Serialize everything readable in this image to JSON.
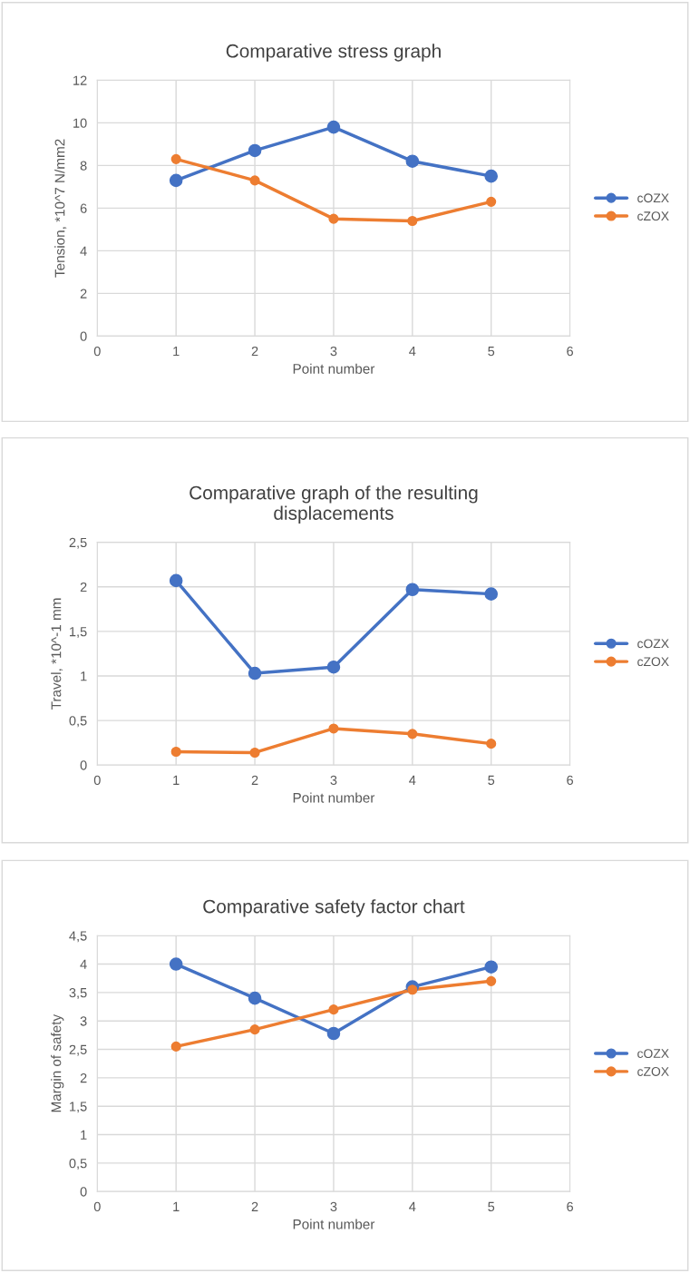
{
  "chart_data": [
    {
      "type": "line",
      "title": "Comparative stress graph",
      "xlabel": "Point number",
      "ylabel": "Tension, *10^7 N/mm2",
      "x": [
        1,
        2,
        3,
        4,
        5
      ],
      "series": [
        {
          "name": "cOZX",
          "color": "#4472c4",
          "values": [
            7.3,
            8.7,
            9.8,
            8.2,
            7.5
          ]
        },
        {
          "name": "cZOX",
          "color": "#ed7d31",
          "values": [
            8.3,
            7.3,
            5.5,
            5.4,
            6.3
          ]
        }
      ],
      "xlim": [
        0,
        6
      ],
      "xticks": [
        0,
        1,
        2,
        3,
        4,
        5,
        6
      ],
      "ylim": [
        0,
        12
      ],
      "yticks": [
        0,
        2,
        4,
        6,
        8,
        10,
        12
      ],
      "grid": true,
      "legend": "right",
      "marker": "circle",
      "line_style": "solid"
    },
    {
      "type": "line",
      "title": "Comparative graph of the resulting\ndisplacements",
      "xlabel": "Point number",
      "ylabel": "Travel, *10^-1 mm",
      "x": [
        1,
        2,
        3,
        4,
        5
      ],
      "series": [
        {
          "name": "cOZX",
          "color": "#4472c4",
          "values": [
            2.07,
            1.03,
            1.1,
            1.97,
            1.92
          ]
        },
        {
          "name": "cZOX",
          "color": "#ed7d31",
          "values": [
            0.15,
            0.14,
            0.41,
            0.35,
            0.24
          ]
        }
      ],
      "xlim": [
        0,
        6
      ],
      "xticks": [
        0,
        1,
        2,
        3,
        4,
        5,
        6
      ],
      "ylim": [
        0,
        2.5
      ],
      "yticks": [
        0,
        {
          "value": 0.5,
          "label": "0,5"
        },
        1,
        {
          "value": 1.5,
          "label": "1,5"
        },
        2,
        {
          "value": 2.5,
          "label": "2,5"
        }
      ],
      "grid": true,
      "legend": "right",
      "marker": "circle",
      "line_style": "solid"
    },
    {
      "type": "line",
      "title": "Comparative safety factor chart",
      "xlabel": "Point number",
      "ylabel": "Margin of safety",
      "x": [
        1,
        2,
        3,
        4,
        5
      ],
      "series": [
        {
          "name": "cOZX",
          "color": "#4472c4",
          "values": [
            4.0,
            3.4,
            2.78,
            3.6,
            3.95
          ]
        },
        {
          "name": "cZOX",
          "color": "#ed7d31",
          "values": [
            2.55,
            2.85,
            3.2,
            3.55,
            3.7
          ]
        }
      ],
      "xlim": [
        0,
        6
      ],
      "xticks": [
        0,
        1,
        2,
        3,
        4,
        5,
        6
      ],
      "ylim": [
        0,
        4.5
      ],
      "yticks": [
        0,
        {
          "value": 0.5,
          "label": "0,5"
        },
        1,
        {
          "value": 1.5,
          "label": "1,5"
        },
        2,
        {
          "value": 2.5,
          "label": "2,5"
        },
        3,
        {
          "value": 3.5,
          "label": "3,5"
        },
        4,
        {
          "value": 4.5,
          "label": "4,5"
        }
      ],
      "grid": true,
      "legend": "right",
      "marker": "circle",
      "line_style": "solid"
    }
  ]
}
